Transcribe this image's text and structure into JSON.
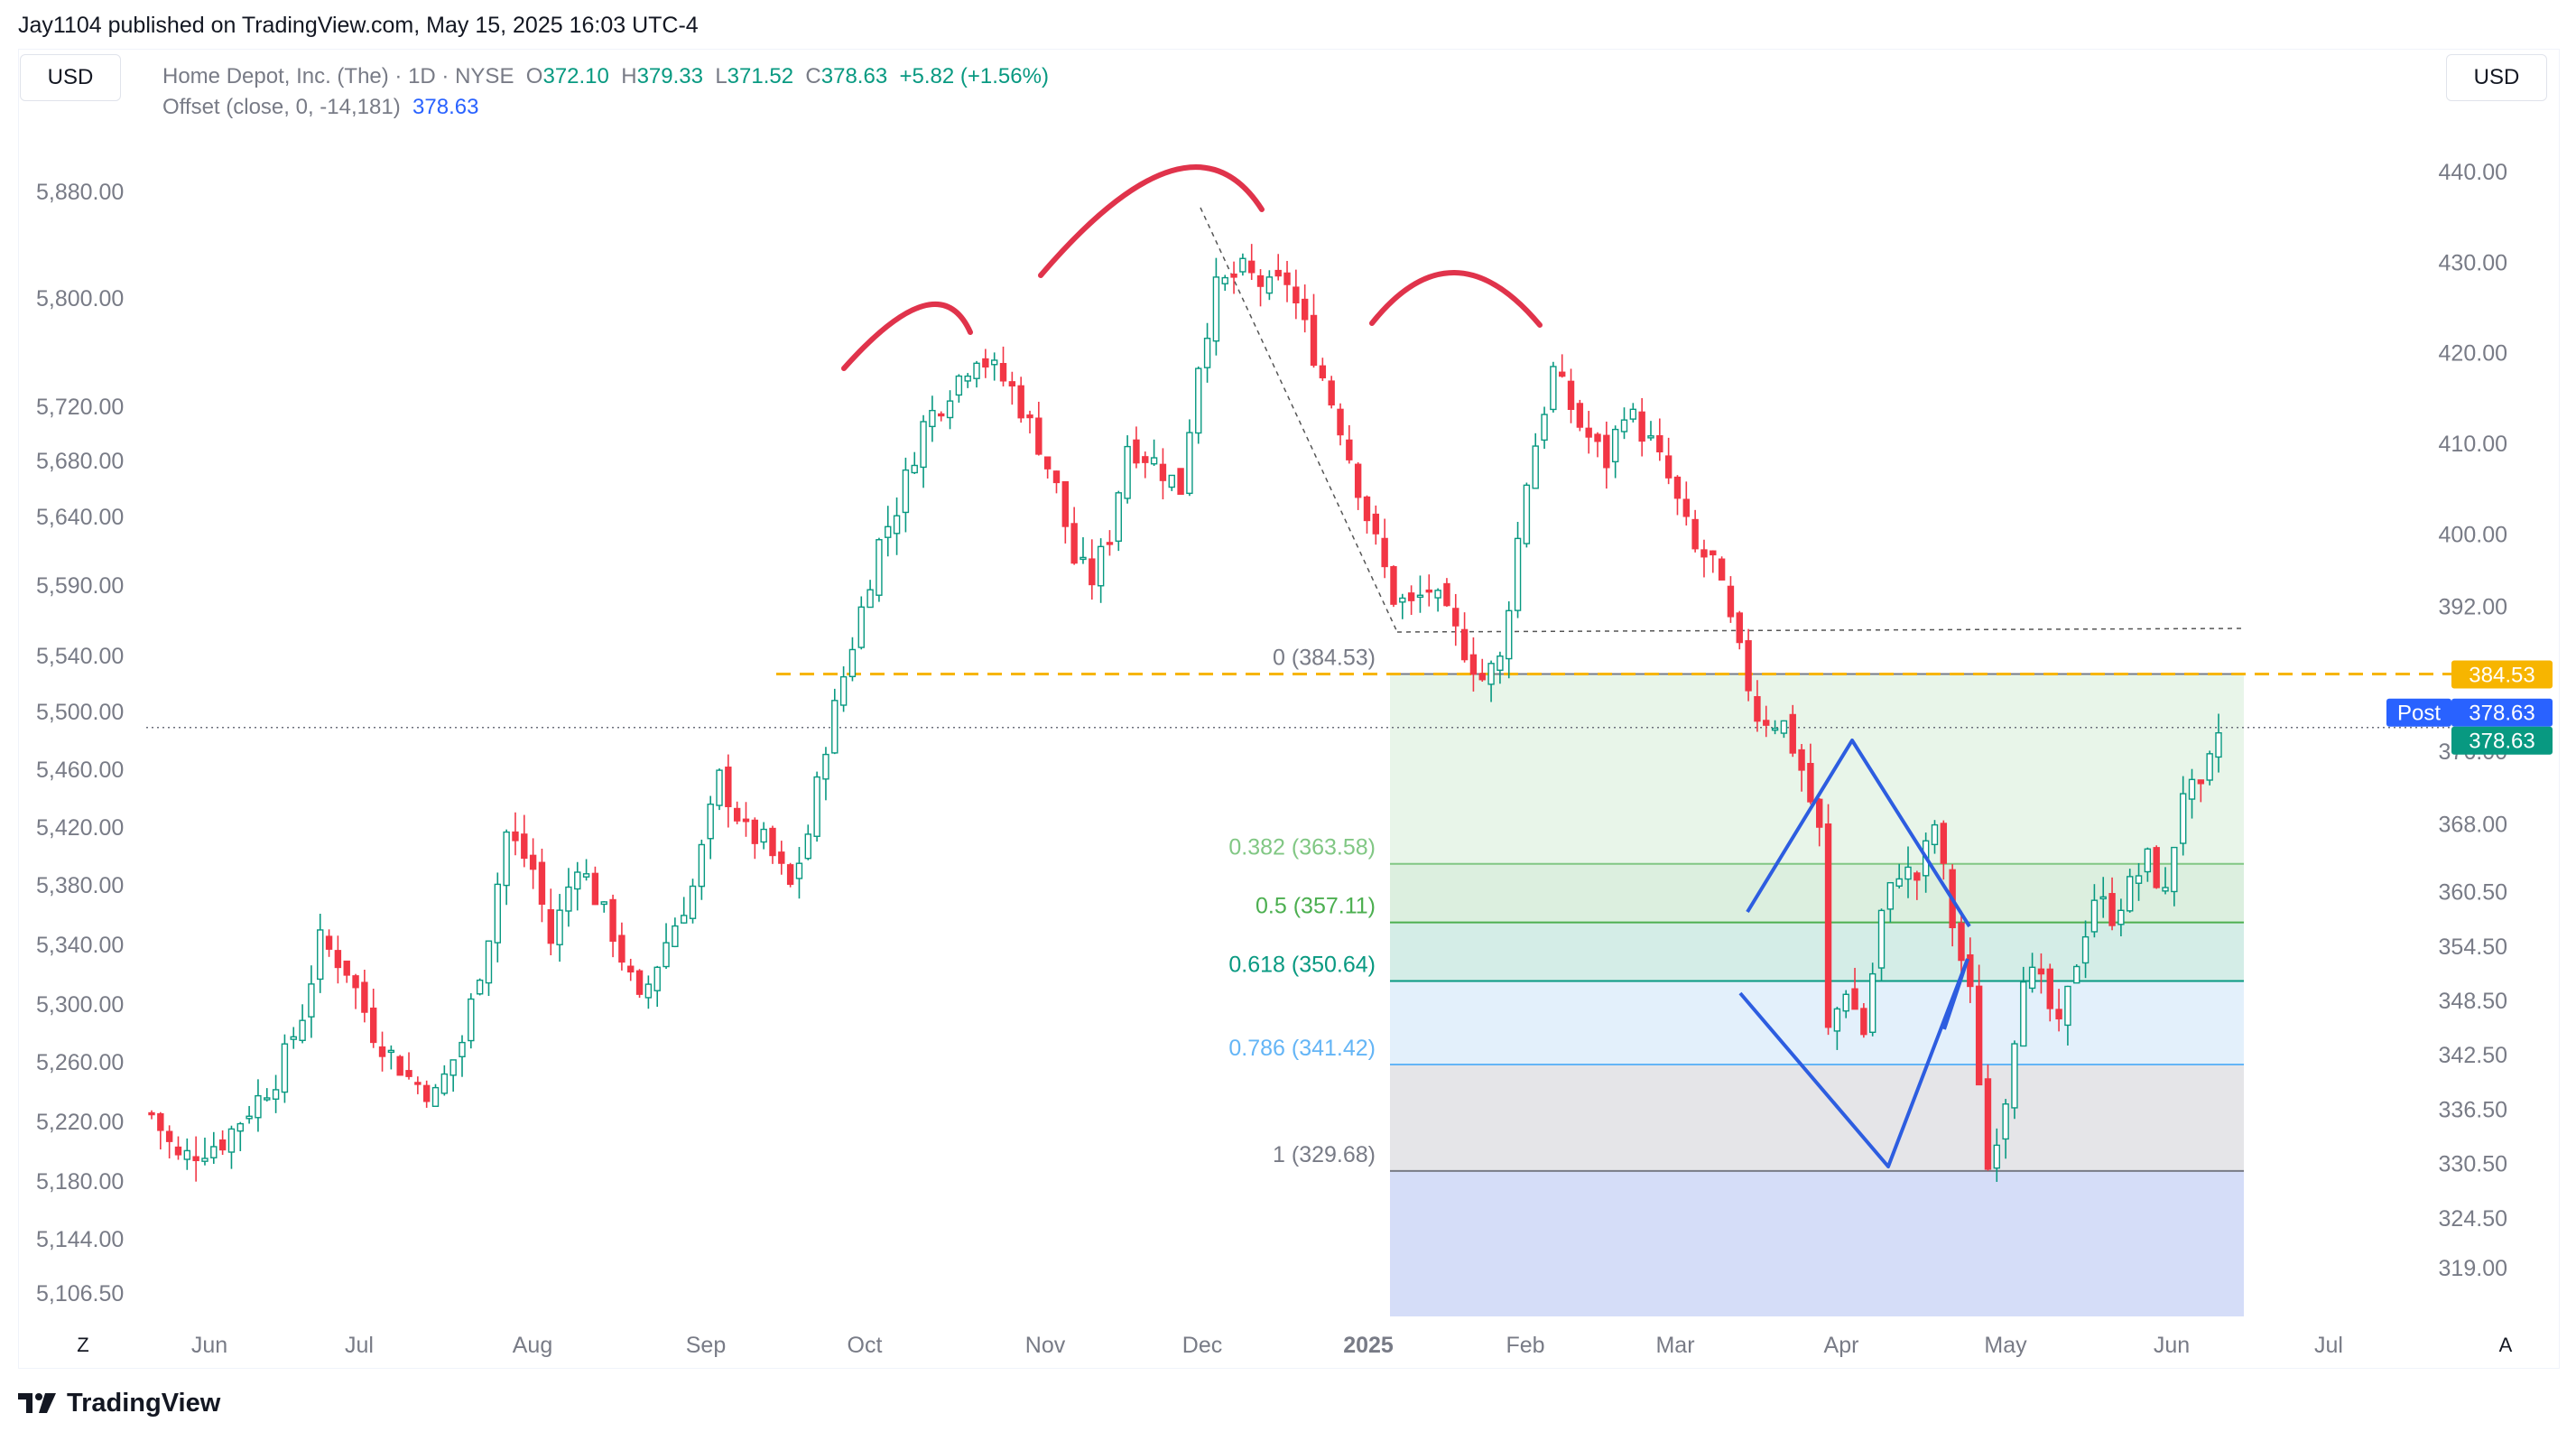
{
  "header": {
    "published": "Jay1104 published on TradingView.com, May 15, 2025 16:03 UTC-4"
  },
  "toolbar": {
    "currency_left": "USD",
    "currency_right": "USD",
    "timezone_btn": "Z",
    "auto_scale_btn": "A"
  },
  "legend": {
    "symbol": "Home Depot, Inc. (The) · 1D · NYSE",
    "o_label": "O",
    "o_value": "372.10",
    "h_label": "H",
    "h_value": "379.33",
    "l_label": "L",
    "l_value": "371.52",
    "c_label": "C",
    "c_value": "378.63",
    "change": "+5.82 (+1.56%)",
    "indicator": "Offset (close, 0, -14,181)",
    "indicator_value": "378.63"
  },
  "footer": {
    "brand": "TradingView"
  },
  "chart_data": {
    "type": "candlestick",
    "x_labels": [
      "Jun",
      "Jul",
      "Aug",
      "Sep",
      "Oct",
      "Nov",
      "Dec",
      "2025",
      "Feb",
      "Mar",
      "Apr",
      "May",
      "Jun",
      "Jul"
    ],
    "left_axis_labels": [
      "5,880.00",
      "5,800.00",
      "5,720.00",
      "5,680.00",
      "5,640.00",
      "5,590.00",
      "5,540.00",
      "5,500.00",
      "5,460.00",
      "5,420.00",
      "5,380.00",
      "5,340.00",
      "5,300.00",
      "5,260.00",
      "5,220.00",
      "5,180.00",
      "5,144.00",
      "5,106.50"
    ],
    "right_axis_labels": [
      "440.00",
      "430.00",
      "420.00",
      "410.00",
      "400.00",
      "392.00",
      "376.00",
      "368.00",
      "360.50",
      "354.50",
      "348.50",
      "342.50",
      "336.50",
      "330.50",
      "324.50",
      "319.00"
    ],
    "right_axis_badges": [
      {
        "text": "384.53",
        "color": "#f7b500"
      },
      {
        "text": "Post",
        "color": "#2962ff"
      },
      {
        "text": "378.63",
        "color": "#2962ff"
      },
      {
        "text": "378.63",
        "color": "#089981"
      }
    ],
    "ylim_right": [
      316,
      443
    ],
    "fib_levels": [
      {
        "label": "0 (384.53)",
        "value": 384.53,
        "color": "#787b86"
      },
      {
        "label": "0.382 (363.58)",
        "value": 363.58,
        "color": "#81c784"
      },
      {
        "label": "0.5 (357.11)",
        "value": 357.11,
        "color": "#4caf50"
      },
      {
        "label": "0.618 (350.64)",
        "value": 350.64,
        "color": "#089981"
      },
      {
        "label": "0.786 (341.42)",
        "value": 341.42,
        "color": "#64b5f6"
      },
      {
        "label": "1 (329.68)",
        "value": 329.68,
        "color": "#787b86"
      }
    ],
    "current_price": 378.63,
    "resistance_level": 384.53,
    "patterns": [
      "head-and-shoulders",
      "diamond"
    ],
    "colors": {
      "up": "#089981",
      "down": "#f23645",
      "pattern": "#e0334b",
      "diamond": "#2d5de0",
      "resistance": "#f7b500"
    }
  }
}
